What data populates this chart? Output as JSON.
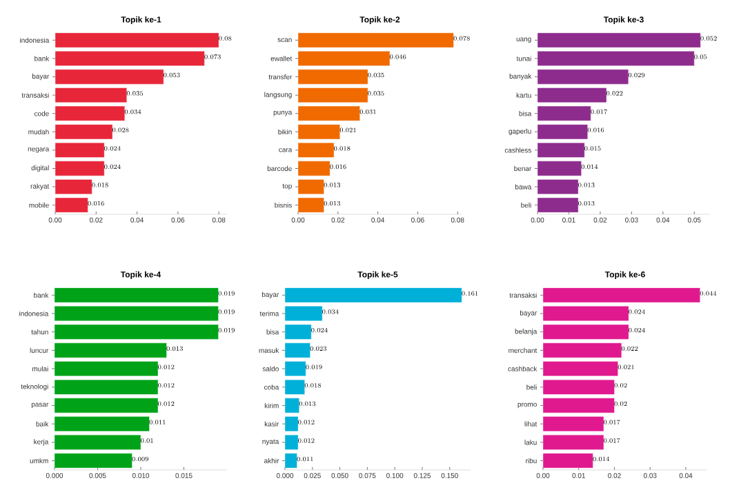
{
  "chart_data": [
    {
      "type": "bar",
      "orientation": "horizontal",
      "title": "Topik ke-1",
      "categories": [
        "indonesia",
        "bank",
        "bayar",
        "transaksi",
        "code",
        "mudah",
        "negara",
        "digital",
        "rakyat",
        "mobile"
      ],
      "values": [
        0.08,
        0.073,
        0.053,
        0.035,
        0.034,
        0.028,
        0.024,
        0.024,
        0.018,
        0.016
      ],
      "color": "#e8263a",
      "xlim": [
        0,
        0.084
      ],
      "xticks": [
        {
          "value": 0,
          "label": "0.00"
        },
        {
          "value": 0.02,
          "label": "0.02"
        },
        {
          "value": 0.04,
          "label": "0.04"
        },
        {
          "value": 0.06,
          "label": "0.06"
        },
        {
          "value": 0.08,
          "label": "0.08"
        }
      ],
      "data_labels": true
    },
    {
      "type": "bar",
      "orientation": "horizontal",
      "title": "Topik ke-2",
      "categories": [
        "scan",
        "ewallet",
        "transfer",
        "langsung",
        "punya",
        "bikin",
        "cara",
        "barcode",
        "top",
        "bisnis"
      ],
      "values": [
        0.078,
        0.046,
        0.035,
        0.035,
        0.031,
        0.021,
        0.018,
        0.016,
        0.013,
        0.013
      ],
      "color": "#f06a00",
      "xlim": [
        0,
        0.082
      ],
      "xticks": [
        {
          "value": 0,
          "label": "0.00"
        },
        {
          "value": 0.02,
          "label": "0.02"
        },
        {
          "value": 0.04,
          "label": "0.04"
        },
        {
          "value": 0.06,
          "label": "0.06"
        },
        {
          "value": 0.08,
          "label": "0.08"
        }
      ],
      "data_labels": true
    },
    {
      "type": "bar",
      "orientation": "horizontal",
      "title": "Topik ke-3",
      "categories": [
        "uang",
        "tunai",
        "banyak",
        "kartu",
        "bisa",
        "gaperlu",
        "cashless",
        "benar",
        "bawa",
        "beli"
      ],
      "values": [
        0.052,
        0.05,
        0.029,
        0.022,
        0.017,
        0.016,
        0.015,
        0.014,
        0.013,
        0.013
      ],
      "color": "#8e2c8e",
      "xlim": [
        0,
        0.055
      ],
      "xticks": [
        {
          "value": 0,
          "label": "0.00"
        },
        {
          "value": 0.01,
          "label": "0.01"
        },
        {
          "value": 0.02,
          "label": "0.02"
        },
        {
          "value": 0.03,
          "label": "0.03"
        },
        {
          "value": 0.04,
          "label": "0.04"
        },
        {
          "value": 0.05,
          "label": "0.05"
        }
      ],
      "data_labels": true
    },
    {
      "type": "bar",
      "orientation": "horizontal",
      "title": "Topik ke-4",
      "categories": [
        "bank",
        "indonesia",
        "tahun",
        "luncur",
        "mulai",
        "teknologi",
        "pasar",
        "baik",
        "kerja",
        "umkm"
      ],
      "values": [
        0.019,
        0.019,
        0.019,
        0.013,
        0.012,
        0.012,
        0.012,
        0.011,
        0.01,
        0.009
      ],
      "color": "#00a318",
      "xlim": [
        0,
        0.02
      ],
      "xticks": [
        {
          "value": 0,
          "label": "0.000"
        },
        {
          "value": 0.005,
          "label": "0.005"
        },
        {
          "value": 0.01,
          "label": "0.010"
        },
        {
          "value": 0.015,
          "label": "0.015"
        }
      ],
      "data_labels": true
    },
    {
      "type": "bar",
      "orientation": "horizontal",
      "title": "Topik ke-5",
      "categories": [
        "bayar",
        "terima",
        "bisa",
        "masuk",
        "saldo",
        "coba",
        "kirim",
        "kasir",
        "nyata",
        "akhir"
      ],
      "values": [
        0.161,
        0.034,
        0.024,
        0.023,
        0.019,
        0.018,
        0.013,
        0.012,
        0.012,
        0.011
      ],
      "color": "#00b0d8",
      "xlim": [
        0,
        0.169
      ],
      "xticks": [
        {
          "value": 0,
          "label": "0.000"
        },
        {
          "value": 0.025,
          "label": "0.025"
        },
        {
          "value": 0.05,
          "label": "0.050"
        },
        {
          "value": 0.075,
          "label": "0.075"
        },
        {
          "value": 0.1,
          "label": "0.100"
        },
        {
          "value": 0.125,
          "label": "0.125"
        },
        {
          "value": 0.15,
          "label": "0.150"
        }
      ],
      "data_labels": true
    },
    {
      "type": "bar",
      "orientation": "horizontal",
      "title": "Topik ke-6",
      "categories": [
        "transaksi",
        "bayar",
        "belanja",
        "merchant",
        "cashback",
        "beli",
        "promo",
        "lihat",
        "laku",
        "ribu"
      ],
      "values": [
        0.044,
        0.024,
        0.024,
        0.022,
        0.021,
        0.02,
        0.02,
        0.017,
        0.017,
        0.014
      ],
      "color": "#e0198f",
      "xlim": [
        0,
        0.046
      ],
      "xticks": [
        {
          "value": 0,
          "label": "0.00"
        },
        {
          "value": 0.01,
          "label": "0.01"
        },
        {
          "value": 0.02,
          "label": "0.02"
        },
        {
          "value": 0.03,
          "label": "0.03"
        },
        {
          "value": 0.04,
          "label": "0.04"
        }
      ],
      "data_labels": true
    }
  ]
}
